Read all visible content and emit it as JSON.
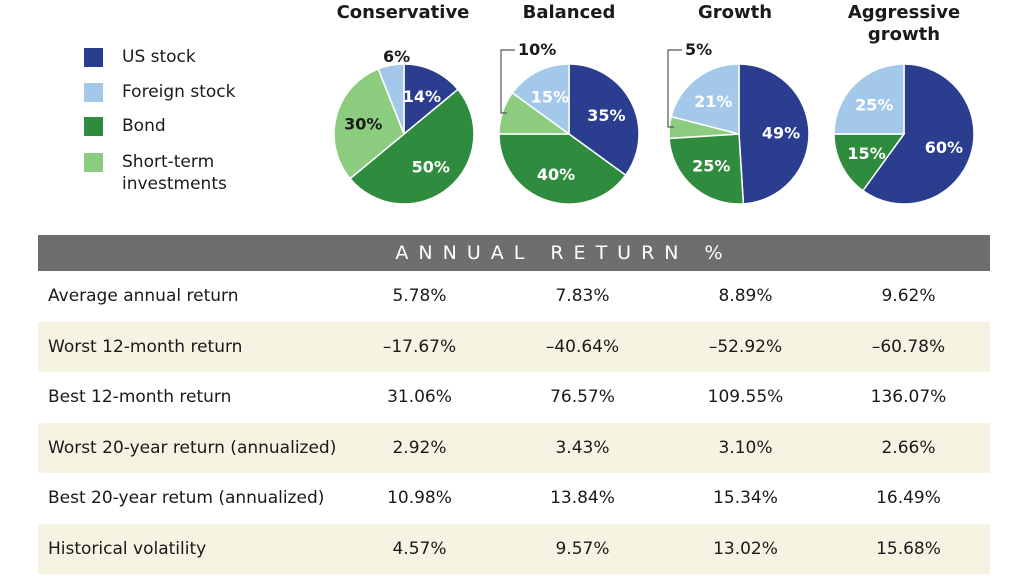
{
  "colors": {
    "us_stock": "#2a3d8f",
    "foreign_stock": "#a4c8ea",
    "bond": "#2f8b3e",
    "short_term": "#8ccc7e",
    "header_bg": "#6e6e6e",
    "row_shade": "#f5f3e2"
  },
  "legend": [
    {
      "label": "US stock",
      "color": "#2a3d8f"
    },
    {
      "label": "Foreign stock",
      "color": "#a4c8ea"
    },
    {
      "label": "Bond",
      "color": "#2f8b3e"
    },
    {
      "label": "Short-term\ninvestments",
      "color": "#8ccc7e"
    }
  ],
  "chart_data": [
    {
      "type": "pie",
      "title": "Conservative",
      "categories": [
        "US stock",
        "Bond",
        "Short-term investments",
        "Foreign stock"
      ],
      "values": [
        14,
        50,
        30,
        6
      ],
      "labels": [
        "14%",
        "50%",
        "30%",
        "6%"
      ]
    },
    {
      "type": "pie",
      "title": "Balanced",
      "categories": [
        "US stock",
        "Bond",
        "Short-term investments",
        "Foreign stock"
      ],
      "values": [
        35,
        40,
        10,
        15
      ],
      "labels": [
        "35%",
        "40%",
        "10%",
        "15%"
      ]
    },
    {
      "type": "pie",
      "title": "Growth",
      "categories": [
        "US stock",
        "Bond",
        "Short-term investments",
        "Foreign stock"
      ],
      "values": [
        49,
        25,
        5,
        21
      ],
      "labels": [
        "49%",
        "25%",
        "5%",
        "21%"
      ]
    },
    {
      "type": "pie",
      "title": "Aggressive\ngrowth",
      "categories": [
        "US stock",
        "Bond",
        "Foreign stock"
      ],
      "values": [
        60,
        15,
        25
      ],
      "labels": [
        "60%",
        "15%",
        "25%"
      ]
    }
  ],
  "table": {
    "header": "ANNUAL RETURN %",
    "rows": [
      {
        "label": "Average annual return",
        "values": [
          "5.78%",
          "7.83%",
          "8.89%",
          "9.62%"
        ]
      },
      {
        "label": "Worst 12-month return",
        "values": [
          "–17.67%",
          "–40.64%",
          "–52.92%",
          "–60.78%"
        ]
      },
      {
        "label": "Best 12-month return",
        "values": [
          "31.06%",
          "76.57%",
          "109.55%",
          "136.07%"
        ]
      },
      {
        "label": "Worst 20-year return (annualized)",
        "values": [
          "2.92%",
          "3.43%",
          "3.10%",
          "2.66%"
        ]
      },
      {
        "label": "Best 20-year retum (annualized)",
        "values": [
          "10.98%",
          "13.84%",
          "15.34%",
          "16.49%"
        ]
      },
      {
        "label": "Historical volatility",
        "values": [
          "4.57%",
          "9.57%",
          "13.02%",
          "15.68%"
        ]
      }
    ]
  }
}
